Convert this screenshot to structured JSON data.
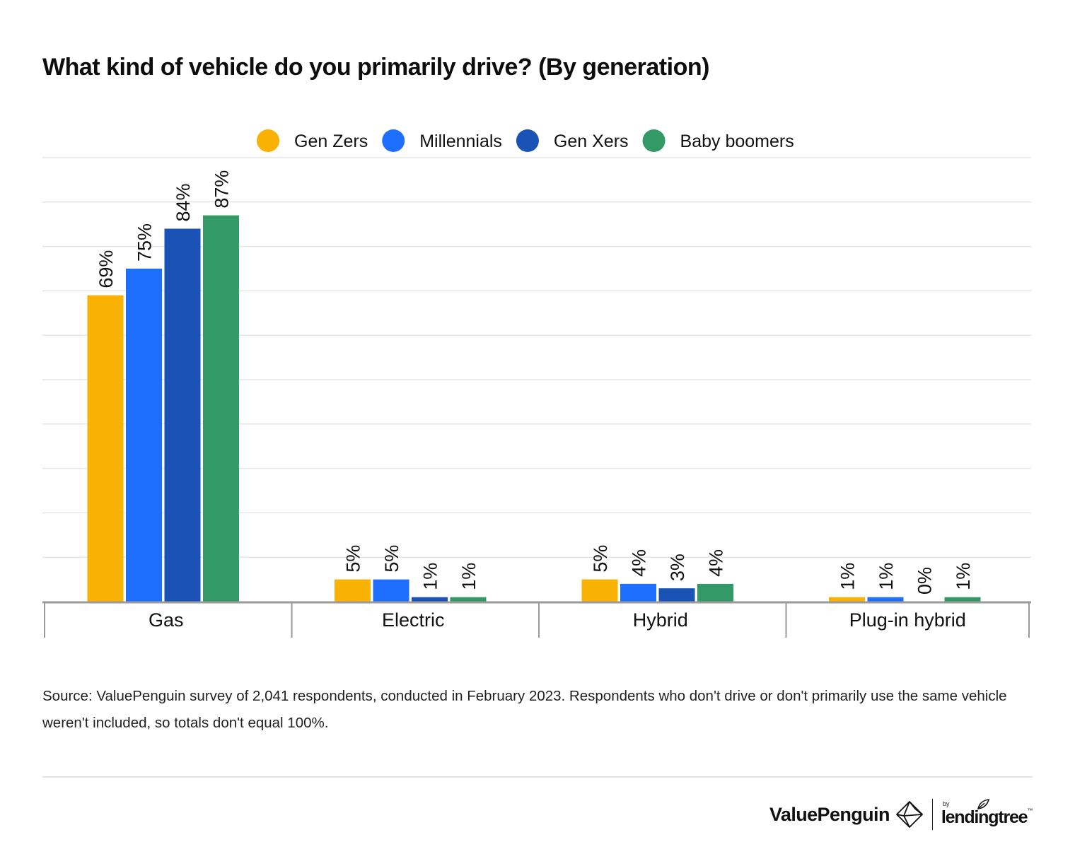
{
  "title": "What kind of vehicle do you primarily drive? (By generation)",
  "chart_data": {
    "type": "bar",
    "title": "What kind of vehicle do you primarily drive? (By generation)",
    "categories": [
      "Gas",
      "Electric",
      "Hybrid",
      "Plug-in hybrid"
    ],
    "series": [
      {
        "name": "Gen Zers",
        "color": "#F9B104",
        "values": [
          69,
          5,
          5,
          1
        ],
        "labels": [
          "69%",
          "5%",
          "5%",
          "1%"
        ]
      },
      {
        "name": "Millennials",
        "color": "#1F6FFF",
        "values": [
          75,
          5,
          4,
          1
        ],
        "labels": [
          "75%",
          "5%",
          "4%",
          "1%"
        ]
      },
      {
        "name": "Gen Xers",
        "color": "#1B52B6",
        "values": [
          84,
          1,
          3,
          0
        ],
        "labels": [
          "84%",
          "1%",
          "3%",
          "0%"
        ]
      },
      {
        "name": "Baby boomers",
        "color": "#339966",
        "values": [
          87,
          1,
          4,
          1
        ],
        "labels": [
          "87%",
          "1%",
          "4%",
          "1%"
        ]
      }
    ],
    "xlabel": "",
    "ylabel": "",
    "ylim": [
      0,
      100
    ],
    "grid": true,
    "legend": "top-center"
  },
  "source": "Source: ValuePenguin survey of 2,041 respondents, conducted in February 2023. Respondents who don't drive or don't primarily use the same vehicle weren't included, so totals don't equal 100%.",
  "brand": {
    "name": "ValuePenguin",
    "by": "by",
    "partner": "lendingtree"
  }
}
